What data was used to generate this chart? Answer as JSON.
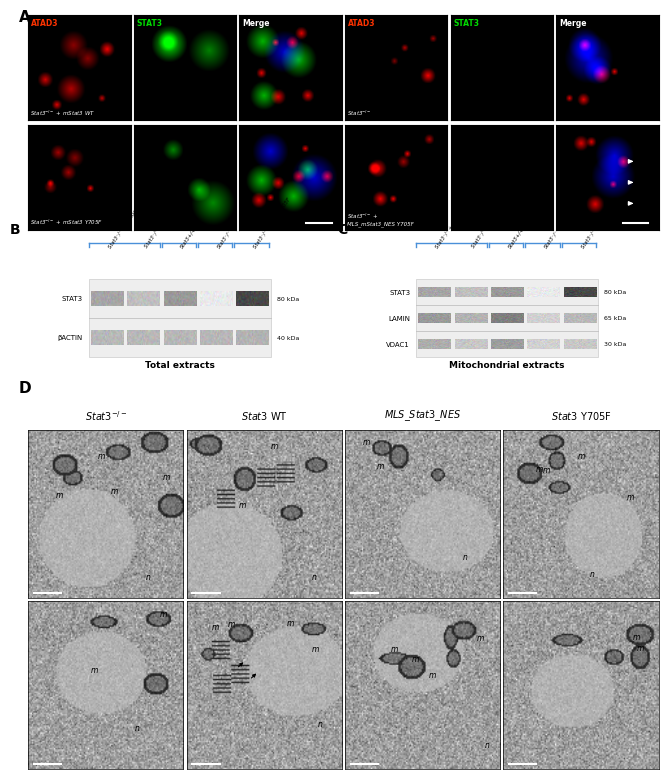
{
  "figure_width": 6.5,
  "figure_height": 7.69,
  "dpi": 100,
  "background_color": "#ffffff",
  "panel_A_label": "A",
  "panel_B_label": "B",
  "panel_C_label": "C",
  "panel_D_label": "D",
  "fluorescence_channel_labels": [
    "ATAD3",
    "STAT3",
    "Merge"
  ],
  "fluorescence_channel_colors": [
    "#ff2200",
    "#00cc00",
    "#ffffff"
  ],
  "wb_B_labels": [
    "STAT3",
    "βACTIN"
  ],
  "wb_B_kda": [
    "80 kDa",
    "40 kDa"
  ],
  "wb_B_title": "Total extracts",
  "wb_C_labels": [
    "STAT3",
    "LAMIN",
    "VDAC1"
  ],
  "wb_C_kda": [
    "80 kDa",
    "65 kDa",
    "30 kDa"
  ],
  "wb_C_title": "Mitochondrial extracts",
  "wb_lane_labels": [
    "Stat3⁻/⁻ + rescue Stat3",
    "Stat3⁻/⁻ + MLS_Stat3_NES",
    "Stat3+/+",
    "Stat3⁻/⁻",
    "Stat3⁻/⁻ + Stat3 Y705F"
  ],
  "em_col_labels": [
    "Stat3⁻/⁻",
    "Stat3 WT",
    "MLS_Stat3_NES",
    "Stat3 Y705F"
  ],
  "text_color": "#000000",
  "label_color_red": "#ff2200",
  "label_color_green": "#00ee00",
  "wb_bracket_color": "#4a90d9"
}
